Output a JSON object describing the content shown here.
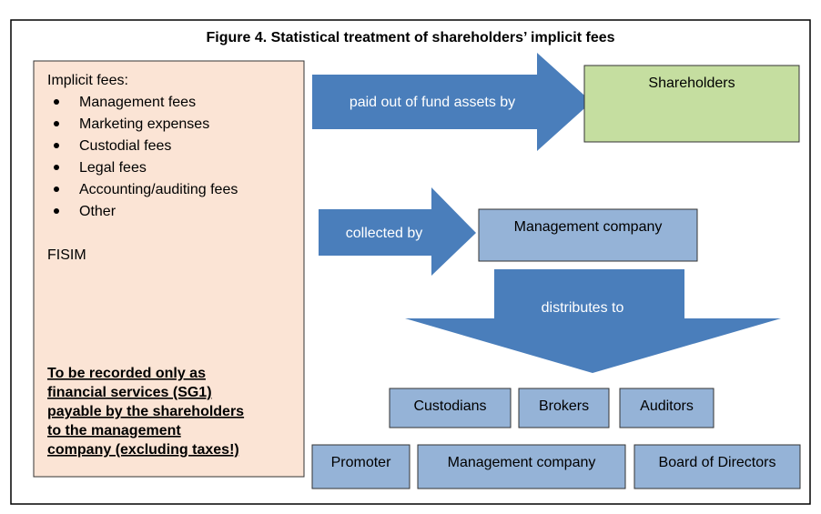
{
  "title": "Figure 4. Statistical treatment of shareholders’ implicit fees",
  "left_box": {
    "heading": "Implicit fees:",
    "items": [
      "Management fees",
      "Marketing expenses",
      "Custodial fees",
      "Legal fees",
      "Accounting/auditing fees",
      "Other"
    ],
    "fisim": "FISIM",
    "note": [
      "To be recorded only as",
      "financial services (SG1)",
      "payable by the shareholders",
      "to the management",
      "company (excluding taxes!)"
    ]
  },
  "arrows": {
    "paid": "paid out of fund assets by",
    "collected": "collected by",
    "distributes": "distributes to"
  },
  "nodes": {
    "shareholders": "Shareholders",
    "management_top": "Management company",
    "custodians": "Custodians",
    "brokers": "Brokers",
    "auditors": "Auditors",
    "promoter": "Promoter",
    "management_bottom": "Management company",
    "board": "Board of Directors"
  }
}
